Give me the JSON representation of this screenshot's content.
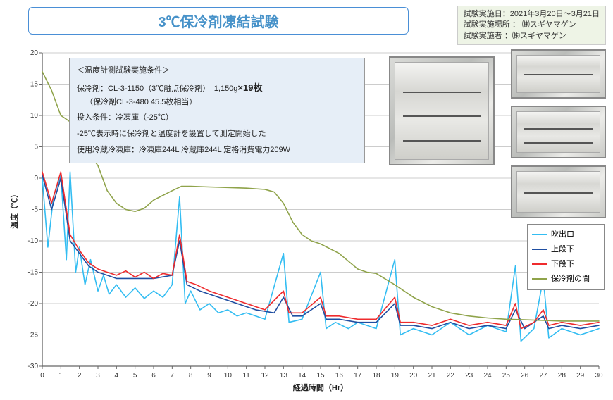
{
  "title": "3℃保冷剤凍結試験",
  "meta": {
    "line1": "試験実施日：2021年3月20日～3月21日",
    "line2": "試験実施場所 ： ㈱スギヤマゲン",
    "line3": "試験実施者   ：㈱スギヤマゲン"
  },
  "conditions": {
    "header": "＜温度計測試験実施条件＞",
    "l1a": "保冷剤：CL-3-1150（3℃融点保冷剤）　1,150g",
    "l1b": "×19枚",
    "l2": "（保冷剤CL-3-480 45.5枚相当）",
    "l3": "投入条件：冷凍庫（-25℃）",
    "l4": "-25℃表示時に保冷剤と温度計を設置して測定開始した",
    "l5": "使用冷蔵冷凍庫：冷凍庫244L 冷蔵庫244L 定格消費電力209W"
  },
  "chart": {
    "type": "line",
    "xlabel": "経過時間（Hr）",
    "ylabel": "温度（℃）",
    "xlim": [
      0,
      30
    ],
    "xtick_step": 1,
    "ylim": [
      -30,
      20
    ],
    "ytick_step": 5,
    "background_color": "#ffffff",
    "grid_color": "#cccccc",
    "axis_color": "#666666",
    "label_fontsize": 11,
    "tick_fontsize": 10,
    "line_width": 1.6,
    "series": [
      {
        "name": "吹出口",
        "color": "#33bdf2",
        "data": [
          [
            0,
            0
          ],
          [
            0.3,
            -11
          ],
          [
            0.6,
            -3
          ],
          [
            1,
            0.5
          ],
          [
            1.3,
            -13
          ],
          [
            1.5,
            1
          ],
          [
            1.8,
            -15
          ],
          [
            2,
            -11
          ],
          [
            2.3,
            -17
          ],
          [
            2.6,
            -13
          ],
          [
            3,
            -18
          ],
          [
            3.3,
            -15.5
          ],
          [
            3.6,
            -18.5
          ],
          [
            4,
            -17
          ],
          [
            4.5,
            -19
          ],
          [
            5,
            -17.5
          ],
          [
            5.5,
            -19.2
          ],
          [
            6,
            -18
          ],
          [
            6.5,
            -19
          ],
          [
            7,
            -17
          ],
          [
            7.4,
            -3
          ],
          [
            7.7,
            -20
          ],
          [
            8,
            -18
          ],
          [
            8.5,
            -21
          ],
          [
            9,
            -20
          ],
          [
            9.5,
            -21.5
          ],
          [
            10,
            -21
          ],
          [
            10.5,
            -22
          ],
          [
            11,
            -21.5
          ],
          [
            12,
            -22.5
          ],
          [
            13,
            -12
          ],
          [
            13.3,
            -23
          ],
          [
            14,
            -22.5
          ],
          [
            15,
            -15
          ],
          [
            15.3,
            -24
          ],
          [
            15.8,
            -23
          ],
          [
            16.5,
            -24
          ],
          [
            17,
            -23
          ],
          [
            18,
            -24
          ],
          [
            19,
            -13
          ],
          [
            19.3,
            -25
          ],
          [
            20,
            -24
          ],
          [
            21,
            -25
          ],
          [
            22,
            -23
          ],
          [
            23,
            -25
          ],
          [
            24,
            -23.5
          ],
          [
            25,
            -24.5
          ],
          [
            25.5,
            -14
          ],
          [
            25.8,
            -26
          ],
          [
            26.5,
            -24
          ],
          [
            27,
            -16
          ],
          [
            27.3,
            -25.5
          ],
          [
            28,
            -24
          ],
          [
            29,
            -25
          ],
          [
            30,
            -24
          ]
        ]
      },
      {
        "name": "上段下",
        "color": "#1f4ea1",
        "data": [
          [
            0,
            0.5
          ],
          [
            0.5,
            -5
          ],
          [
            1,
            0
          ],
          [
            1.5,
            -10
          ],
          [
            2,
            -12
          ],
          [
            2.5,
            -14
          ],
          [
            3,
            -15
          ],
          [
            3.5,
            -15.5
          ],
          [
            4,
            -16
          ],
          [
            5,
            -16
          ],
          [
            6,
            -16
          ],
          [
            7,
            -15.5
          ],
          [
            7.4,
            -10
          ],
          [
            7.8,
            -17
          ],
          [
            8.5,
            -18
          ],
          [
            9.5,
            -19
          ],
          [
            10.5,
            -20
          ],
          [
            11.5,
            -21
          ],
          [
            12.5,
            -21.5
          ],
          [
            13,
            -19
          ],
          [
            13.5,
            -22
          ],
          [
            14,
            -22
          ],
          [
            15,
            -20
          ],
          [
            15.3,
            -22.5
          ],
          [
            16,
            -22.5
          ],
          [
            17,
            -23
          ],
          [
            18,
            -23
          ],
          [
            19,
            -20
          ],
          [
            19.3,
            -23.5
          ],
          [
            20,
            -23.5
          ],
          [
            21,
            -24
          ],
          [
            22,
            -23
          ],
          [
            23,
            -24
          ],
          [
            24,
            -23.5
          ],
          [
            25,
            -24
          ],
          [
            25.5,
            -21
          ],
          [
            26,
            -24
          ],
          [
            27,
            -22
          ],
          [
            27.3,
            -24
          ],
          [
            28,
            -23.5
          ],
          [
            29,
            -24
          ],
          [
            30,
            -23.5
          ]
        ]
      },
      {
        "name": "下段下",
        "color": "#ef2b2d",
        "data": [
          [
            0,
            1
          ],
          [
            0.5,
            -4
          ],
          [
            1,
            1
          ],
          [
            1.5,
            -9
          ],
          [
            2,
            -11.5
          ],
          [
            2.5,
            -13.5
          ],
          [
            3,
            -14.5
          ],
          [
            3.5,
            -15
          ],
          [
            4,
            -15.5
          ],
          [
            4.5,
            -14.8
          ],
          [
            5,
            -15.8
          ],
          [
            5.5,
            -15
          ],
          [
            6,
            -16
          ],
          [
            6.5,
            -15.2
          ],
          [
            7,
            -15.5
          ],
          [
            7.4,
            -9
          ],
          [
            7.8,
            -16.5
          ],
          [
            8.3,
            -17
          ],
          [
            9,
            -18
          ],
          [
            10,
            -19
          ],
          [
            11,
            -20
          ],
          [
            12,
            -21
          ],
          [
            13,
            -18
          ],
          [
            13.3,
            -21.5
          ],
          [
            14,
            -21.5
          ],
          [
            15,
            -19
          ],
          [
            15.3,
            -22
          ],
          [
            16,
            -22
          ],
          [
            17,
            -22.5
          ],
          [
            18,
            -22.5
          ],
          [
            19,
            -19
          ],
          [
            19.3,
            -23
          ],
          [
            20,
            -23
          ],
          [
            21,
            -23.5
          ],
          [
            22,
            -22.5
          ],
          [
            23,
            -23.5
          ],
          [
            24,
            -23
          ],
          [
            25,
            -23.5
          ],
          [
            25.5,
            -20
          ],
          [
            25.8,
            -24
          ],
          [
            26.5,
            -23
          ],
          [
            27,
            -21
          ],
          [
            27.3,
            -23.5
          ],
          [
            28,
            -23
          ],
          [
            29,
            -23.5
          ],
          [
            30,
            -23
          ]
        ]
      },
      {
        "name": "保冷剤の間",
        "color": "#8fa34a",
        "data": [
          [
            0,
            17
          ],
          [
            0.5,
            14
          ],
          [
            1,
            10
          ],
          [
            1.5,
            9
          ],
          [
            2,
            6
          ],
          [
            3,
            2
          ],
          [
            3.5,
            -2
          ],
          [
            4,
            -4
          ],
          [
            4.5,
            -5
          ],
          [
            5,
            -5.3
          ],
          [
            5.5,
            -4.8
          ],
          [
            6,
            -3.5
          ],
          [
            7,
            -2
          ],
          [
            7.5,
            -1.3
          ],
          [
            8,
            -1.3
          ],
          [
            9,
            -1.4
          ],
          [
            10,
            -1.5
          ],
          [
            11,
            -1.6
          ],
          [
            12,
            -1.8
          ],
          [
            12.5,
            -2.2
          ],
          [
            13,
            -4
          ],
          [
            13.5,
            -7
          ],
          [
            14,
            -9
          ],
          [
            14.5,
            -10
          ],
          [
            15,
            -10.5
          ],
          [
            16,
            -12
          ],
          [
            17,
            -14.5
          ],
          [
            17.5,
            -15
          ],
          [
            18,
            -15.2
          ],
          [
            19,
            -17
          ],
          [
            20,
            -19
          ],
          [
            21,
            -20.5
          ],
          [
            22,
            -21.5
          ],
          [
            23,
            -22
          ],
          [
            24,
            -22.3
          ],
          [
            25,
            -22.5
          ],
          [
            26,
            -22.6
          ],
          [
            27,
            -22.7
          ],
          [
            28,
            -22.8
          ],
          [
            29,
            -22.8
          ],
          [
            30,
            -22.8
          ]
        ]
      }
    ]
  },
  "legend_items": [
    {
      "label": "吹出口",
      "color": "#33bdf2"
    },
    {
      "label": "上段下",
      "color": "#1f4ea1"
    },
    {
      "label": "下段下",
      "color": "#ef2b2d"
    },
    {
      "label": "保冷剤の間",
      "color": "#8fa34a"
    }
  ]
}
